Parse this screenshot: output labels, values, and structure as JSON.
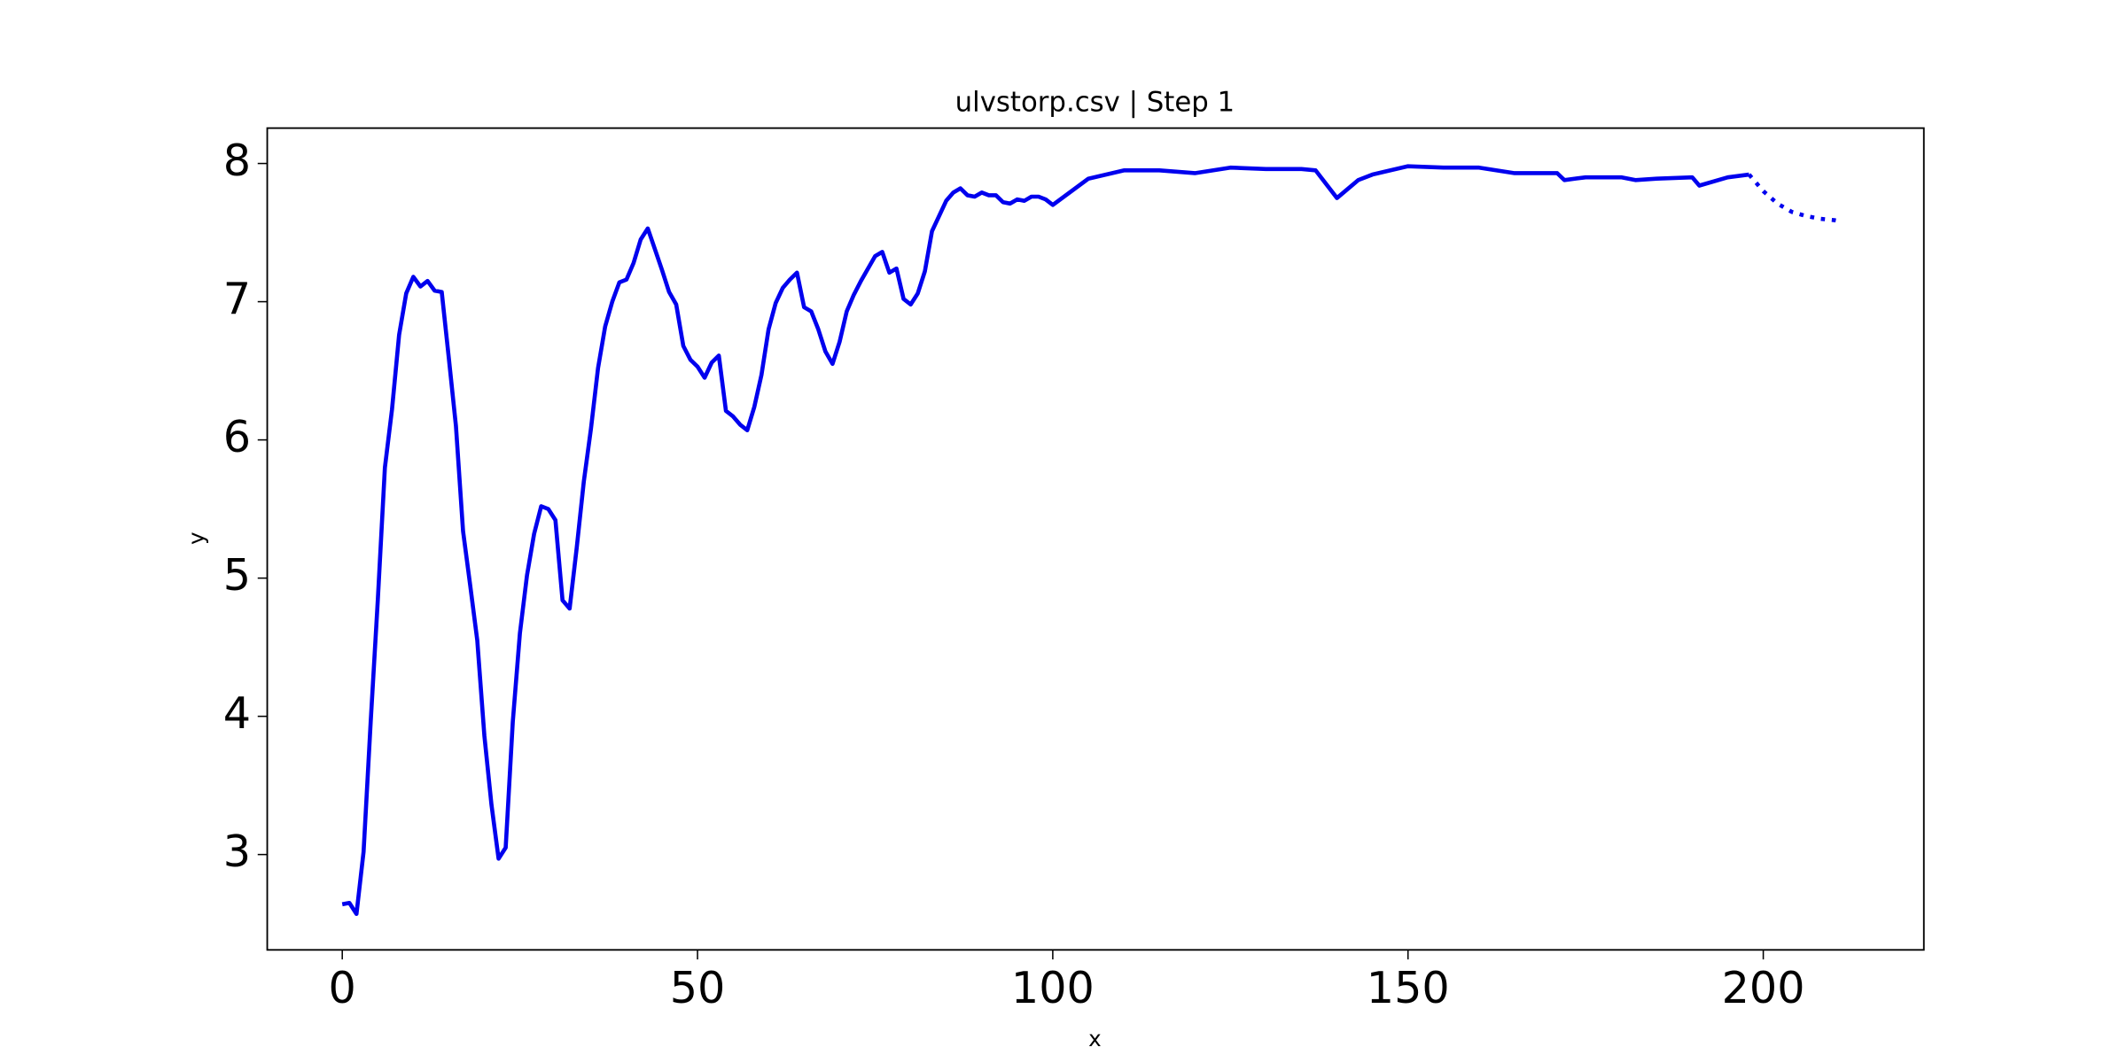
{
  "chart_data": {
    "type": "line",
    "title": "ulvstorp.csv | Step 1",
    "x_label": "x",
    "y_label": "y",
    "xlim": [
      -10.56,
      222.6
    ],
    "ylim": [
      2.31,
      8.256
    ],
    "xticks": [
      0,
      50,
      100,
      150,
      200
    ],
    "yticks": [
      3,
      4,
      5,
      6,
      7,
      8
    ],
    "series": [
      {
        "color": "#0000ee",
        "style": "solid",
        "x": [
          0,
          1,
          2,
          3,
          4,
          5,
          6,
          7,
          8,
          9,
          10,
          11,
          12,
          13,
          14,
          15,
          16,
          17,
          18,
          19,
          20,
          21,
          22,
          23,
          24,
          25,
          26,
          27,
          28,
          29,
          30,
          31,
          32,
          33,
          34,
          35,
          36,
          37,
          38,
          39,
          40,
          41,
          42,
          43,
          44,
          45,
          46,
          47,
          48,
          49,
          50,
          51,
          52,
          53,
          54,
          55,
          56,
          57,
          58,
          59,
          60,
          61,
          62,
          63,
          64,
          65,
          66,
          67,
          68,
          69,
          70,
          71,
          72,
          73,
          74,
          75,
          76,
          77,
          78,
          79,
          80,
          81,
          82,
          83,
          84,
          85,
          86,
          87,
          88,
          89,
          90,
          91,
          92,
          93,
          94,
          95,
          96,
          97,
          98,
          99,
          100,
          105,
          110,
          115,
          120,
          125,
          130,
          135,
          137,
          140,
          143,
          145,
          150,
          155,
          160,
          165,
          170,
          171,
          172,
          175,
          180,
          182,
          185,
          190,
          191,
          195,
          198
        ],
        "values": [
          2.64,
          2.65,
          2.57,
          3.02,
          3.96,
          4.84,
          5.8,
          6.22,
          6.76,
          7.06,
          7.18,
          7.11,
          7.15,
          7.08,
          7.07,
          6.59,
          6.1,
          5.34,
          4.95,
          4.55,
          3.86,
          3.36,
          2.97,
          3.05,
          3.96,
          4.6,
          5.02,
          5.32,
          5.52,
          5.5,
          5.42,
          4.84,
          4.78,
          5.22,
          5.7,
          6.08,
          6.52,
          6.82,
          7.0,
          7.14,
          7.16,
          7.28,
          7.45,
          7.53,
          7.38,
          7.23,
          7.07,
          6.98,
          6.68,
          6.58,
          6.53,
          6.45,
          6.56,
          6.61,
          6.21,
          6.17,
          6.11,
          6.07,
          6.24,
          6.47,
          6.8,
          6.99,
          7.1,
          7.16,
          7.21,
          6.96,
          6.93,
          6.8,
          6.64,
          6.55,
          6.71,
          6.93,
          7.05,
          7.15,
          7.24,
          7.33,
          7.36,
          7.21,
          7.24,
          7.02,
          6.98,
          7.06,
          7.22,
          7.51,
          7.62,
          7.73,
          7.79,
          7.82,
          7.77,
          7.76,
          7.79,
          7.77,
          7.77,
          7.72,
          7.71,
          7.74,
          7.73,
          7.76,
          7.76,
          7.74,
          7.7,
          7.89,
          7.95,
          7.95,
          7.93,
          7.97,
          7.96,
          7.96,
          7.95,
          7.75,
          7.88,
          7.92,
          7.98,
          7.97,
          7.97,
          7.93,
          7.93,
          7.93,
          7.88,
          7.9,
          7.9,
          7.88,
          7.89,
          7.9,
          7.84,
          7.9,
          7.92
        ]
      },
      {
        "color": "#0000ee",
        "style": "dotted",
        "x": [
          198,
          200,
          202,
          204,
          206,
          208,
          210,
          211
        ],
        "values": [
          7.92,
          7.8,
          7.71,
          7.65,
          7.62,
          7.6,
          7.59,
          7.58
        ]
      }
    ]
  }
}
